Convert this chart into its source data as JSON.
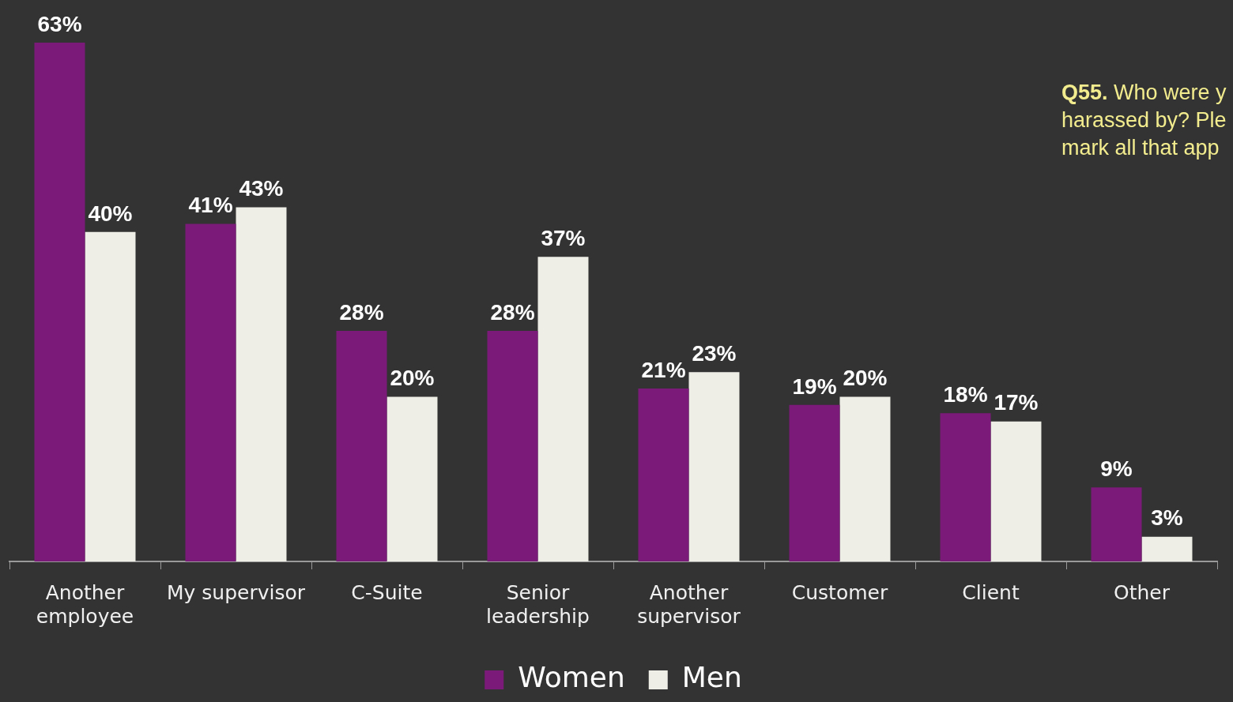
{
  "chart_data": {
    "type": "bar",
    "categories": [
      "Another employee",
      "My supervisor",
      "C-Suite",
      "Senior leadership",
      "Another supervisor",
      "Customer",
      "Client",
      "Other"
    ],
    "series": [
      {
        "name": "Women",
        "color": "#7b1a78",
        "values": [
          63,
          41,
          28,
          28,
          21,
          19,
          18,
          9
        ],
        "value_labels": [
          "63%",
          "41%",
          "28%",
          "28%",
          "21%",
          "19%",
          "18%",
          "9%"
        ]
      },
      {
        "name": "Men",
        "color": "#efeee6",
        "values": [
          40,
          43,
          20,
          37,
          23,
          20,
          17,
          3
        ],
        "value_labels": [
          "40%",
          "43%",
          "20%",
          "37%",
          "23%",
          "20%",
          "17%",
          "3%"
        ]
      }
    ],
    "legend": "bottom",
    "annotations": [
      "Q55.",
      "Who were y harassed by? Ple mark all that app"
    ]
  }
}
